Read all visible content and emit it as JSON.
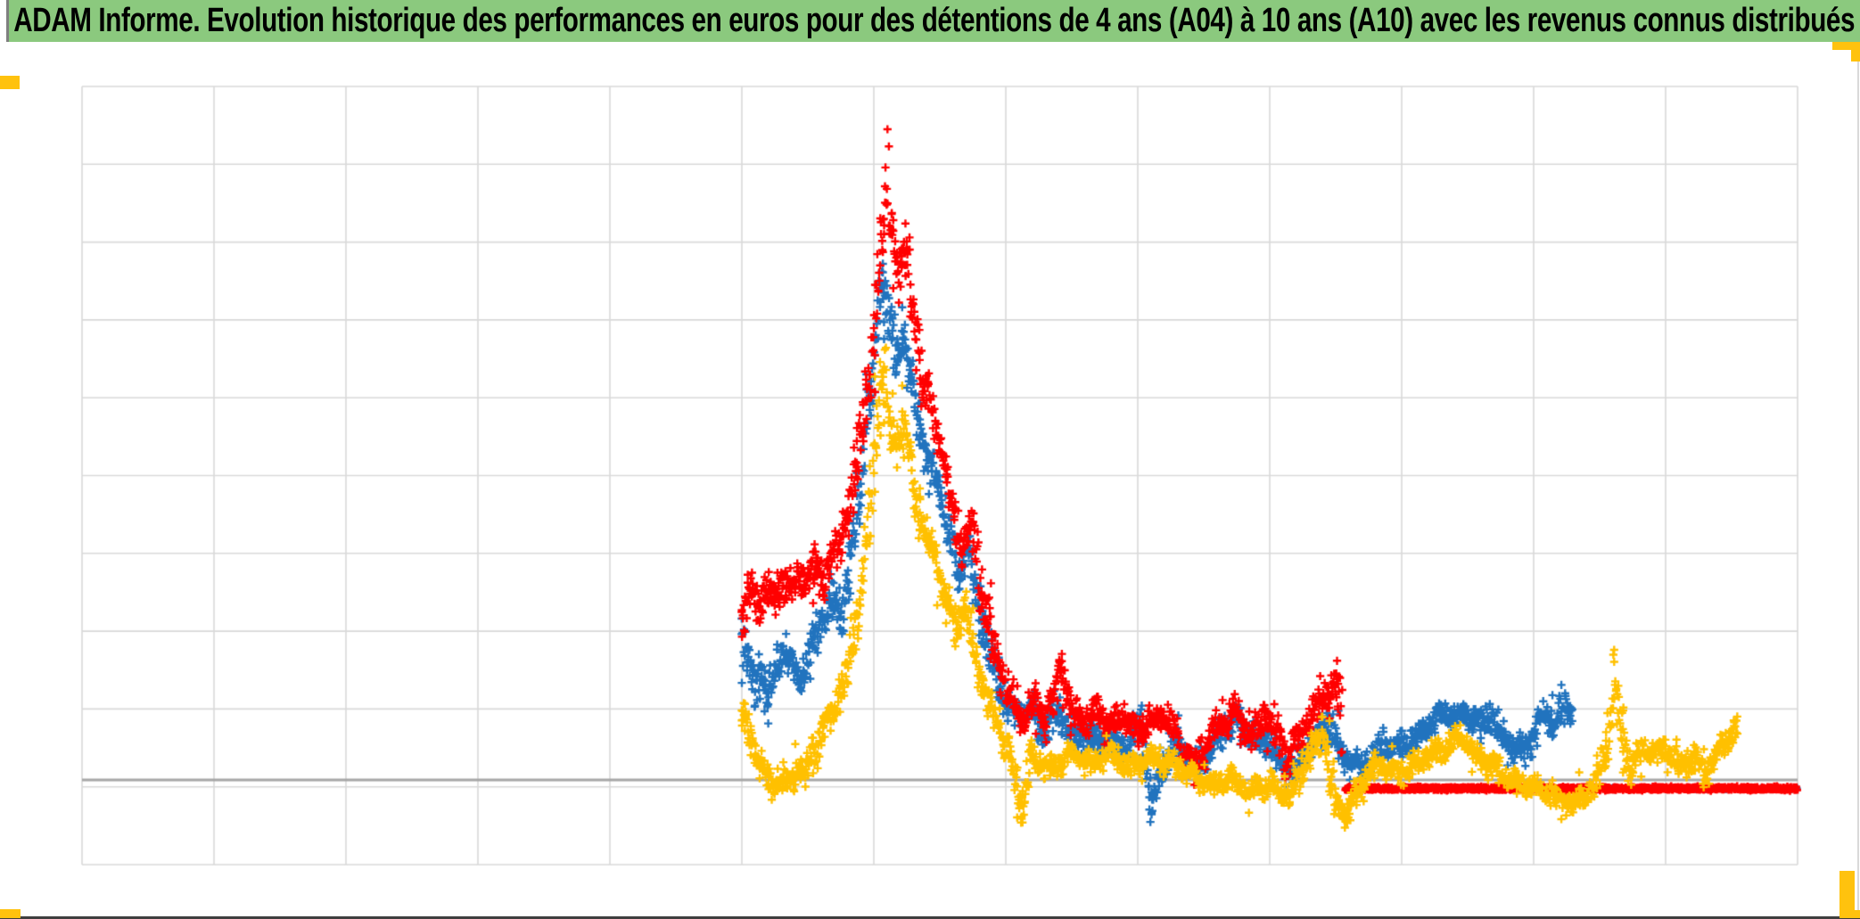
{
  "header": {
    "title": "ADAM Informe. Evolution historique des performances en euros pour des détentions de 4 ans (A04) à 10 ans (A10) avec les revenus connus distribués",
    "background_color": "#8BC97E",
    "text_color": "#000000"
  },
  "frame": {
    "accent_color": "#FFC20E",
    "bottom_line_color": "#3F3F3F",
    "left_notch_color": "#7F7F7F",
    "window_edge_color": "#D9D9D9"
  },
  "chart_data": {
    "type": "scatter",
    "title": "",
    "xlabel": "",
    "ylabel": "",
    "legend_visible": false,
    "axis_labels_visible": false,
    "marker": "plus",
    "grid": {
      "v_intervals": 13,
      "h_intervals": 10,
      "color": "#D9D9D9"
    },
    "axes": {
      "zero_line_color": "#A6A6A6",
      "zero_line_units": 0
    },
    "units_note": "no tick labels are shown in the chart; x = vertical-gridline column index 0-13, y = horizontal-gridline units relative to the dark zero axis line",
    "xlim": [
      0,
      13
    ],
    "ylim": [
      -1.09,
      8.91
    ],
    "series": [
      {
        "name": "blue-series",
        "color": "#2173BE",
        "z": 1,
        "base_spread": 0.13,
        "anchors": [
          [
            5.0,
            1.9
          ],
          [
            5.05,
            1.5
          ],
          [
            5.1,
            1.15
          ],
          [
            5.15,
            1.45
          ],
          [
            5.2,
            1.05
          ],
          [
            5.26,
            1.35
          ],
          [
            5.32,
            1.7
          ],
          [
            5.38,
            1.5
          ],
          [
            5.45,
            1.25
          ],
          [
            5.52,
            1.6
          ],
          [
            5.6,
            2.0
          ],
          [
            5.68,
            2.3
          ],
          [
            5.75,
            2.1
          ],
          [
            5.82,
            2.8
          ],
          [
            5.9,
            3.8
          ],
          [
            5.97,
            4.9
          ],
          [
            6.03,
            5.9
          ],
          [
            6.07,
            6.6
          ],
          [
            6.12,
            5.9
          ],
          [
            6.17,
            5.4
          ],
          [
            6.22,
            5.7
          ],
          [
            6.28,
            5.1
          ],
          [
            6.35,
            4.5
          ],
          [
            6.42,
            4.1
          ],
          [
            6.5,
            3.7
          ],
          [
            6.58,
            3.1
          ],
          [
            6.65,
            2.7
          ],
          [
            6.72,
            3.0
          ],
          [
            6.8,
            2.2
          ],
          [
            6.9,
            1.5
          ],
          [
            7.0,
            1.0
          ],
          [
            7.1,
            0.8
          ],
          [
            7.2,
            0.9
          ],
          [
            7.28,
            0.6
          ],
          [
            7.35,
            0.95
          ],
          [
            7.45,
            0.7
          ],
          [
            7.55,
            0.5
          ],
          [
            7.62,
            0.65
          ],
          [
            7.7,
            0.45
          ],
          [
            7.76,
            0.55
          ],
          [
            7.85,
            0.35
          ],
          [
            7.95,
            0.5
          ],
          [
            8.03,
            0.75
          ],
          [
            8.11,
            -0.32
          ],
          [
            8.2,
            0.3
          ],
          [
            8.3,
            0.45
          ],
          [
            8.4,
            0.25
          ],
          [
            8.47,
            0.15
          ],
          [
            8.56,
            0.45
          ],
          [
            8.65,
            0.6
          ],
          [
            8.74,
            0.8
          ],
          [
            8.83,
            0.65
          ],
          [
            8.9,
            0.5
          ],
          [
            8.97,
            0.55
          ],
          [
            9.05,
            0.3
          ],
          [
            9.12,
            0.2
          ],
          [
            9.18,
            0.1
          ],
          [
            9.28,
            0.35
          ],
          [
            9.38,
            0.55
          ],
          [
            9.45,
            0.72
          ],
          [
            9.52,
            0.45
          ],
          [
            9.6,
            0.25
          ],
          [
            9.7,
            0.15
          ],
          [
            9.8,
            0.3
          ],
          [
            9.9,
            0.45
          ],
          [
            10.0,
            0.4
          ],
          [
            10.1,
            0.55
          ],
          [
            10.2,
            0.7
          ],
          [
            10.3,
            0.85
          ],
          [
            10.4,
            0.8
          ],
          [
            10.5,
            0.85
          ],
          [
            10.6,
            0.7
          ],
          [
            10.68,
            0.8
          ],
          [
            10.75,
            0.6
          ],
          [
            10.82,
            0.45
          ],
          [
            10.9,
            0.35
          ],
          [
            10.98,
            0.55
          ],
          [
            11.05,
            0.75
          ],
          [
            11.12,
            0.85
          ],
          [
            11.18,
            0.7
          ],
          [
            11.24,
            0.95
          ],
          [
            11.3,
            0.85
          ]
        ],
        "overlay_dashes": {
          "from": 11.45,
          "to": 13.0,
          "y_units": -0.11
        }
      },
      {
        "name": "red-series",
        "color": "#FF0000",
        "z": 2,
        "base_spread": 0.14,
        "anchors": [
          [
            5.0,
            2.1
          ],
          [
            5.06,
            2.45
          ],
          [
            5.12,
            2.2
          ],
          [
            5.18,
            2.5
          ],
          [
            5.24,
            2.3
          ],
          [
            5.3,
            2.6
          ],
          [
            5.36,
            2.4
          ],
          [
            5.42,
            2.62
          ],
          [
            5.48,
            2.45
          ],
          [
            5.55,
            2.78
          ],
          [
            5.62,
            2.55
          ],
          [
            5.7,
            2.9
          ],
          [
            5.78,
            3.25
          ],
          [
            5.85,
            3.85
          ],
          [
            5.92,
            4.6
          ],
          [
            5.98,
            5.4
          ],
          [
            6.04,
            6.6
          ],
          [
            6.09,
            7.9
          ],
          [
            6.14,
            6.9
          ],
          [
            6.19,
            6.5
          ],
          [
            6.24,
            6.9
          ],
          [
            6.3,
            6.1
          ],
          [
            6.37,
            5.2
          ],
          [
            6.45,
            4.7
          ],
          [
            6.53,
            4.1
          ],
          [
            6.6,
            3.5
          ],
          [
            6.67,
            3.0
          ],
          [
            6.74,
            3.25
          ],
          [
            6.82,
            2.4
          ],
          [
            6.92,
            1.6
          ],
          [
            7.02,
            1.1
          ],
          [
            7.12,
            0.8
          ],
          [
            7.22,
            1.0
          ],
          [
            7.3,
            0.8
          ],
          [
            7.41,
            1.45
          ],
          [
            7.5,
            0.9
          ],
          [
            7.6,
            0.7
          ],
          [
            7.69,
            0.95
          ],
          [
            7.78,
            0.65
          ],
          [
            7.86,
            0.82
          ],
          [
            7.93,
            0.75
          ],
          [
            8.0,
            0.6
          ],
          [
            8.08,
            0.7
          ],
          [
            8.16,
            0.85
          ],
          [
            8.23,
            0.8
          ],
          [
            8.32,
            0.5
          ],
          [
            8.43,
            0.15
          ],
          [
            8.52,
            0.45
          ],
          [
            8.62,
            0.7
          ],
          [
            8.72,
            0.88
          ],
          [
            8.8,
            0.7
          ],
          [
            8.88,
            0.55
          ],
          [
            8.96,
            0.95
          ],
          [
            9.05,
            0.6
          ],
          [
            9.14,
            0.3
          ],
          [
            9.22,
            0.55
          ],
          [
            9.3,
            0.75
          ],
          [
            9.4,
            1.0
          ],
          [
            9.51,
            1.26
          ],
          [
            9.55,
            0.6
          ]
        ],
        "flat_segment": {
          "from": 9.57,
          "to": 13.0,
          "y_units": -0.11
        }
      },
      {
        "name": "gold-series",
        "color": "#FFC000",
        "z": 3,
        "base_spread": 0.11,
        "anchors": [
          [
            5.0,
            0.8
          ],
          [
            5.06,
            0.55
          ],
          [
            5.12,
            0.3
          ],
          [
            5.18,
            0.1
          ],
          [
            5.24,
            -0.1
          ],
          [
            5.3,
            0.05
          ],
          [
            5.36,
            -0.05
          ],
          [
            5.42,
            0.15
          ],
          [
            5.48,
            0.1
          ],
          [
            5.55,
            0.35
          ],
          [
            5.62,
            0.7
          ],
          [
            5.7,
            0.9
          ],
          [
            5.76,
            1.2
          ],
          [
            5.82,
            1.6
          ],
          [
            5.9,
            2.4
          ],
          [
            5.97,
            3.4
          ],
          [
            6.03,
            4.6
          ],
          [
            6.07,
            5.3
          ],
          [
            6.12,
            4.6
          ],
          [
            6.17,
            4.2
          ],
          [
            6.22,
            4.6
          ],
          [
            6.28,
            4.0
          ],
          [
            6.35,
            3.4
          ],
          [
            6.45,
            2.9
          ],
          [
            6.55,
            2.3
          ],
          [
            6.63,
            1.95
          ],
          [
            6.7,
            2.2
          ],
          [
            6.78,
            1.5
          ],
          [
            6.88,
            0.95
          ],
          [
            6.98,
            0.5
          ],
          [
            7.05,
            0.15
          ],
          [
            7.12,
            -0.38
          ],
          [
            7.2,
            0.3
          ],
          [
            7.35,
            0.15
          ],
          [
            7.5,
            0.35
          ],
          [
            7.65,
            0.2
          ],
          [
            7.8,
            0.35
          ],
          [
            7.95,
            0.15
          ],
          [
            8.1,
            0.3
          ],
          [
            8.25,
            0.2
          ],
          [
            8.4,
            0.1
          ],
          [
            8.55,
            -0.1
          ],
          [
            8.7,
            0.05
          ],
          [
            8.85,
            -0.15
          ],
          [
            9.0,
            -0.05
          ],
          [
            9.15,
            -0.2
          ],
          [
            9.32,
            0.35
          ],
          [
            9.4,
            0.65
          ],
          [
            9.5,
            -0.3
          ],
          [
            9.58,
            -0.45
          ],
          [
            9.65,
            -0.15
          ],
          [
            9.8,
            0.2
          ],
          [
            10.0,
            0.1
          ],
          [
            10.15,
            0.25
          ],
          [
            10.3,
            0.4
          ],
          [
            10.45,
            0.55
          ],
          [
            10.55,
            0.35
          ],
          [
            10.7,
            0.15
          ],
          [
            10.85,
            0.0
          ],
          [
            11.0,
            -0.1
          ],
          [
            11.15,
            -0.2
          ],
          [
            11.3,
            -0.3
          ],
          [
            11.45,
            -0.1
          ],
          [
            11.55,
            0.35
          ],
          [
            11.61,
            1.18
          ],
          [
            11.68,
            0.55
          ],
          [
            11.74,
            0.15
          ],
          [
            11.82,
            0.45
          ],
          [
            11.9,
            0.3
          ],
          [
            12.0,
            0.4
          ],
          [
            12.1,
            0.15
          ],
          [
            12.2,
            0.3
          ],
          [
            12.3,
            0.1
          ],
          [
            12.38,
            0.3
          ],
          [
            12.45,
            0.45
          ],
          [
            12.52,
            0.62
          ],
          [
            12.55,
            0.5
          ]
        ]
      }
    ]
  }
}
